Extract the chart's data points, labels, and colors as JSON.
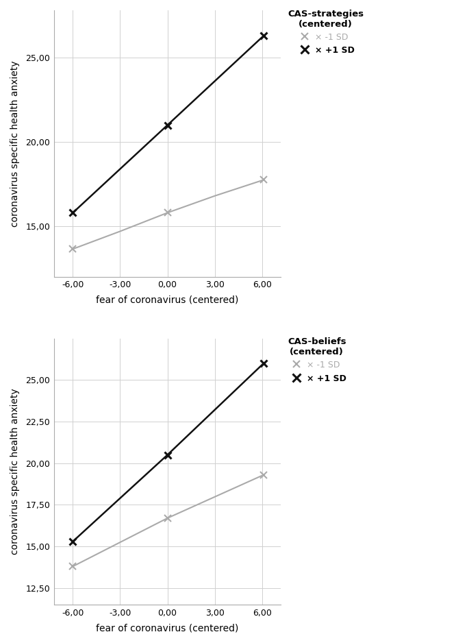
{
  "top": {
    "legend_title_line1": "CAS-strategies",
    "legend_title_line2": "(centered)",
    "black_x": [
      -6,
      0,
      6.1
    ],
    "black_y": [
      15.8,
      21.0,
      26.3
    ],
    "gray_x": [
      -6,
      -3,
      0,
      3,
      6.1
    ],
    "gray_y": [
      13.65,
      14.7,
      15.8,
      16.8,
      17.75
    ],
    "xlim": [
      -7.2,
      7.2
    ],
    "ylim": [
      12.0,
      27.8
    ],
    "yticks": [
      15.0,
      20.0,
      25.0
    ],
    "xticks": [
      -6,
      -3,
      0,
      3,
      6
    ],
    "xlabel": "fear of coronavirus (centered)",
    "ylabel": "coronavirus specific health anxiety"
  },
  "bottom": {
    "legend_title_line1": "CAS-beliefs",
    "legend_title_line2": "(centered)",
    "black_x": [
      -6,
      0,
      6.1
    ],
    "black_y": [
      15.3,
      20.5,
      26.0
    ],
    "gray_x": [
      -6,
      0,
      6.1
    ],
    "gray_y": [
      13.8,
      16.7,
      19.3
    ],
    "xlim": [
      -7.2,
      7.2
    ],
    "ylim": [
      11.5,
      27.5
    ],
    "yticks": [
      12.5,
      15.0,
      17.5,
      20.0,
      22.5,
      25.0
    ],
    "xticks": [
      -6,
      -3,
      0,
      3,
      6
    ],
    "xlabel": "fear of coronavirus (centered)",
    "ylabel": "coronavirus specific health anxiety"
  },
  "black_color": "#111111",
  "gray_color": "#aaaaaa",
  "bg_color": "#ffffff",
  "grid_color": "#d0d0d0",
  "spine_color": "#aaaaaa"
}
